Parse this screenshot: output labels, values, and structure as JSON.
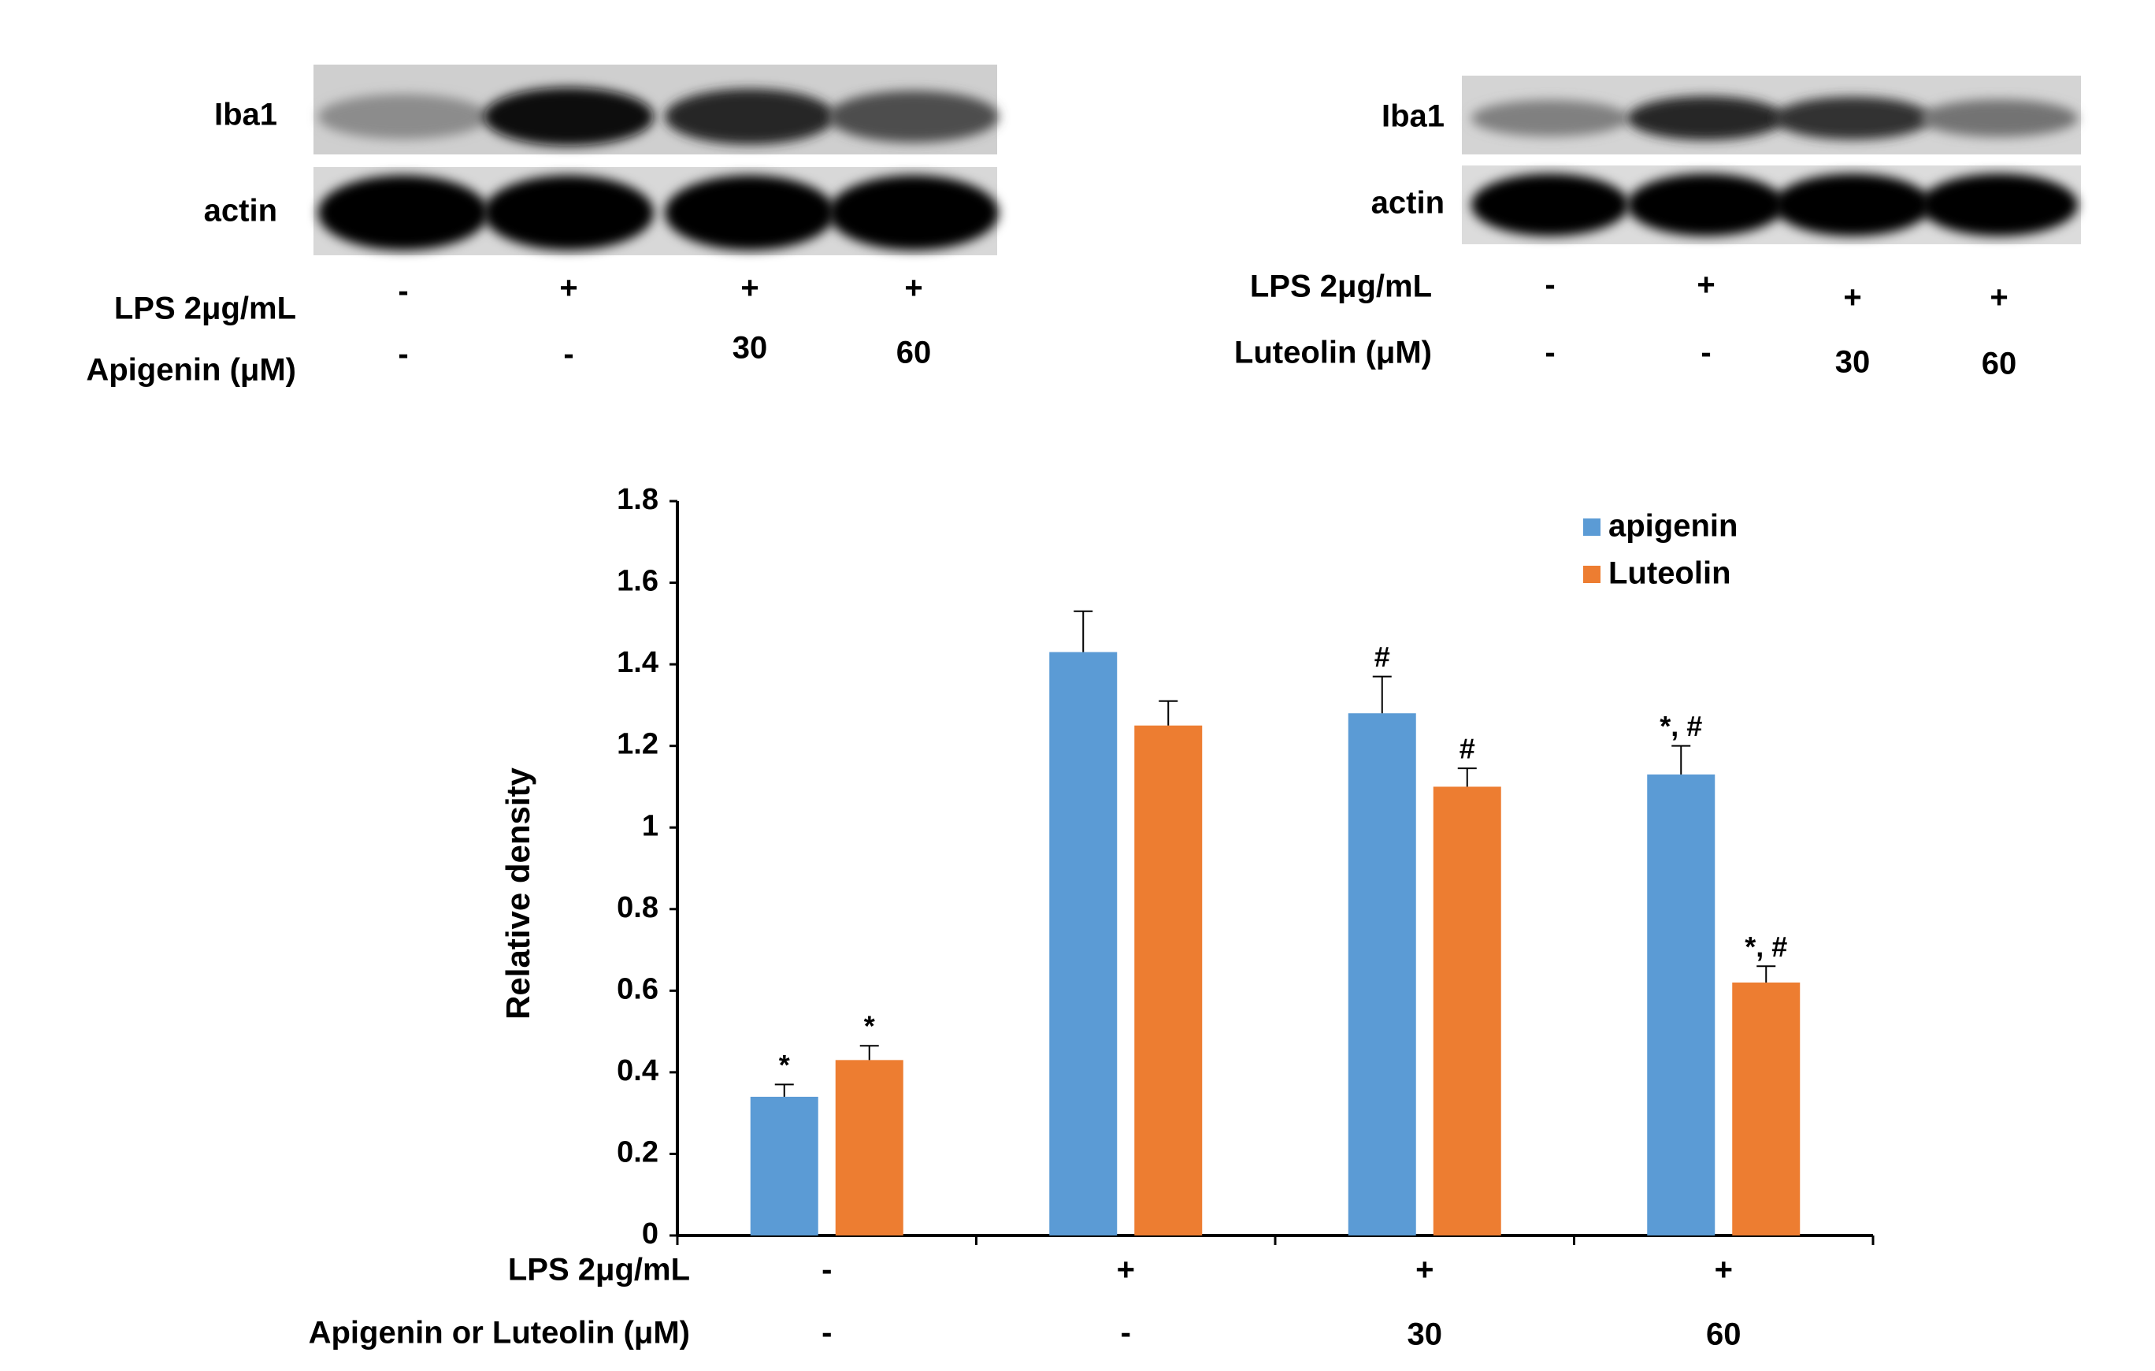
{
  "blot_left": {
    "rows": [
      {
        "label": "Iba1",
        "intensities": [
          0.45,
          0.95,
          0.85,
          0.7
        ]
      },
      {
        "label": "actin",
        "intensities": [
          0.98,
          0.98,
          0.98,
          0.98
        ]
      }
    ],
    "conditions": [
      {
        "label": "LPS 2μg/mL",
        "values": [
          "-",
          "+",
          "+",
          "+"
        ]
      },
      {
        "label": "Apigenin (μM)",
        "values": [
          "-",
          "-",
          "30",
          "60"
        ]
      }
    ]
  },
  "blot_right": {
    "rows": [
      {
        "label": "Iba1",
        "intensities": [
          0.5,
          0.85,
          0.8,
          0.55
        ]
      },
      {
        "label": "actin",
        "intensities": [
          0.98,
          0.98,
          0.98,
          0.98
        ]
      }
    ],
    "conditions": [
      {
        "label": "LPS 2μg/mL",
        "values": [
          "-",
          "+",
          "+",
          "+"
        ]
      },
      {
        "label": "Luteolin (μM)",
        "values": [
          "-",
          "-",
          "30",
          "60"
        ]
      }
    ]
  },
  "chart_data": {
    "type": "bar",
    "title": "",
    "xlabel": "",
    "ylabel": "Relative density",
    "ylim": [
      0,
      1.8
    ],
    "yticks": [
      "0",
      "0.2",
      "0.4",
      "0.6",
      "0.8",
      "1",
      "1.2",
      "1.4",
      "1.6",
      "1.8"
    ],
    "grid": false,
    "legend_position": "top-right",
    "series": [
      {
        "name": "apigenin",
        "color": "#5B9BD5",
        "values": [
          0.34,
          1.43,
          1.28,
          1.13
        ],
        "errors": [
          0.03,
          0.1,
          0.09,
          0.07
        ],
        "annotations": [
          "*",
          "",
          "#",
          "*, #"
        ]
      },
      {
        "name": "Luteolin",
        "color": "#ED7D31",
        "values": [
          0.43,
          1.25,
          1.1,
          0.62
        ],
        "errors": [
          0.035,
          0.06,
          0.045,
          0.04
        ],
        "annotations": [
          "*",
          "",
          "#",
          "*, #"
        ]
      }
    ],
    "condition_rows": [
      {
        "label": "LPS 2μg/mL",
        "values": [
          "-",
          "+",
          "+",
          "+"
        ]
      },
      {
        "label": "Apigenin or Luteolin (μM)",
        "values": [
          "-",
          "-",
          "30",
          "60"
        ]
      }
    ]
  }
}
